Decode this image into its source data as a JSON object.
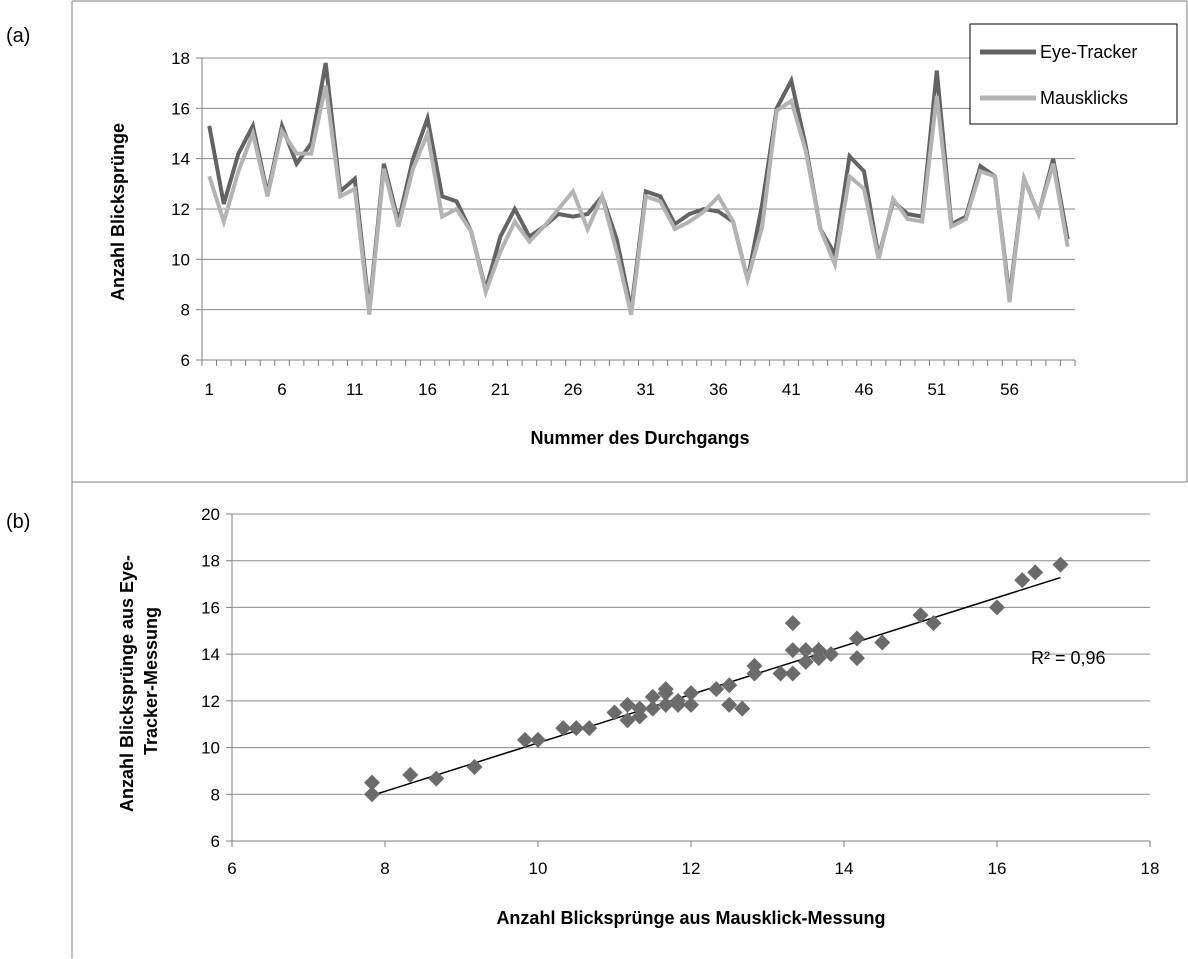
{
  "figure": {
    "panel_a_label": "(a)",
    "panel_b_label": "(b)"
  },
  "colors": {
    "eye_tracker": "#636363",
    "mausklicks": "#b3b3b3",
    "scatter": "#6b6b6b",
    "grid": "#8c8c8c",
    "frame": "#7f7f7f"
  },
  "chart_data": [
    {
      "type": "line",
      "panel": "(a)",
      "title": "",
      "xlabel": "Nummer des Durchgangs",
      "ylabel": "Anzahl Blicksprünge",
      "ylim": [
        6,
        18
      ],
      "y_ticks": [
        6,
        8,
        10,
        12,
        14,
        16,
        18
      ],
      "x_tick_labels": [
        "1",
        "6",
        "11",
        "16",
        "21",
        "26",
        "31",
        "36",
        "41",
        "46",
        "51",
        "56"
      ],
      "x": [
        1,
        2,
        3,
        4,
        5,
        6,
        7,
        8,
        9,
        10,
        11,
        12,
        13,
        14,
        15,
        16,
        17,
        18,
        19,
        20,
        21,
        22,
        23,
        24,
        25,
        26,
        27,
        28,
        29,
        30,
        31,
        32,
        33,
        34,
        35,
        36,
        37,
        38,
        39,
        40,
        41,
        42,
        43,
        44,
        45,
        46,
        47,
        48,
        49,
        50,
        51,
        52,
        53,
        54,
        55,
        56,
        57,
        58,
        59,
        60
      ],
      "grid": true,
      "legend_position": "top-right",
      "series": [
        {
          "name": "Eye-Tracker",
          "values": [
            15.3,
            12.2,
            14.2,
            15.3,
            12.6,
            15.3,
            13.8,
            14.6,
            17.8,
            12.7,
            13.2,
            8.0,
            13.8,
            11.5,
            14.0,
            15.6,
            12.5,
            12.3,
            11.1,
            8.8,
            10.9,
            12.0,
            10.9,
            11.3,
            11.8,
            11.7,
            11.8,
            12.5,
            10.8,
            8.0,
            12.7,
            12.5,
            11.4,
            11.8,
            12.0,
            11.9,
            11.5,
            9.2,
            12.2,
            16.0,
            17.1,
            14.5,
            11.2,
            10.2,
            14.1,
            13.5,
            10.1,
            12.3,
            11.8,
            11.7,
            17.5,
            11.4,
            11.7,
            13.7,
            13.3,
            8.5,
            13.2,
            11.8,
            14.0,
            10.8
          ]
        },
        {
          "name": "Mausklicks",
          "values": [
            13.3,
            11.5,
            13.5,
            15.0,
            12.5,
            15.1,
            14.2,
            14.2,
            16.9,
            12.5,
            12.8,
            7.8,
            13.6,
            11.3,
            13.6,
            15.0,
            11.7,
            12.0,
            11.1,
            8.7,
            10.3,
            11.5,
            10.7,
            11.3,
            12.0,
            12.7,
            11.2,
            12.5,
            10.3,
            7.8,
            12.5,
            12.3,
            11.2,
            11.5,
            11.9,
            12.5,
            11.5,
            9.2,
            11.3,
            15.9,
            16.3,
            14.3,
            11.2,
            9.8,
            13.3,
            12.8,
            10.0,
            12.4,
            11.6,
            11.5,
            16.5,
            11.3,
            11.6,
            13.5,
            13.3,
            8.3,
            13.2,
            11.8,
            13.8,
            10.5
          ]
        }
      ]
    },
    {
      "type": "scatter",
      "panel": "(b)",
      "title": "",
      "xlabel": "Anzahl Blicksprünge aus Mausklick-Messung",
      "ylabel_line1": "Anzahl Blicksprünge aus Eye-",
      "ylabel_line2": "Tracker-Messung",
      "xlim": [
        6,
        18
      ],
      "ylim": [
        6,
        20
      ],
      "x_ticks": [
        6,
        8,
        10,
        12,
        14,
        16,
        18
      ],
      "y_ticks": [
        6,
        8,
        10,
        12,
        14,
        16,
        18,
        20
      ],
      "grid": true,
      "points": [
        [
          7.83,
          8.0
        ],
        [
          7.83,
          8.5
        ],
        [
          8.33,
          8.83
        ],
        [
          8.67,
          8.67
        ],
        [
          9.17,
          9.17
        ],
        [
          9.83,
          10.33
        ],
        [
          10.0,
          10.33
        ],
        [
          10.33,
          10.83
        ],
        [
          10.5,
          10.83
        ],
        [
          10.67,
          10.83
        ],
        [
          11.0,
          11.5
        ],
        [
          11.17,
          11.83
        ],
        [
          11.17,
          11.17
        ],
        [
          11.33,
          11.67
        ],
        [
          11.33,
          11.33
        ],
        [
          11.5,
          11.67
        ],
        [
          11.5,
          12.17
        ],
        [
          11.67,
          12.33
        ],
        [
          11.67,
          11.83
        ],
        [
          11.67,
          12.5
        ],
        [
          11.83,
          12.0
        ],
        [
          11.83,
          11.83
        ],
        [
          12.0,
          12.33
        ],
        [
          12.0,
          11.83
        ],
        [
          12.33,
          12.5
        ],
        [
          12.5,
          12.67
        ],
        [
          12.5,
          11.83
        ],
        [
          12.67,
          11.67
        ],
        [
          12.83,
          13.17
        ],
        [
          12.83,
          13.5
        ],
        [
          13.17,
          13.17
        ],
        [
          13.33,
          13.17
        ],
        [
          13.33,
          14.17
        ],
        [
          13.33,
          15.33
        ],
        [
          13.5,
          13.67
        ],
        [
          13.5,
          14.17
        ],
        [
          13.67,
          13.83
        ],
        [
          13.67,
          14.17
        ],
        [
          13.83,
          14.0
        ],
        [
          14.17,
          13.83
        ],
        [
          14.17,
          14.67
        ],
        [
          14.5,
          14.5
        ],
        [
          15.0,
          15.67
        ],
        [
          15.17,
          15.33
        ],
        [
          16.0,
          16.0
        ],
        [
          16.33,
          17.17
        ],
        [
          16.5,
          17.5
        ],
        [
          16.83,
          17.83
        ]
      ],
      "trendline": {
        "x": [
          7.83,
          16.83
        ],
        "y": [
          7.95,
          17.28
        ],
        "label": "R² = 0,96"
      }
    }
  ]
}
